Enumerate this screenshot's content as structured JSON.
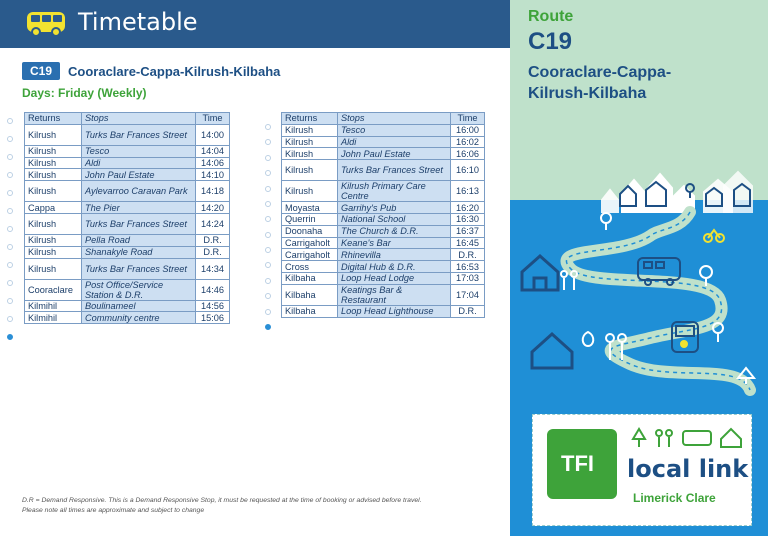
{
  "header": {
    "title": "Timetable"
  },
  "route": {
    "code": "C19",
    "name": "Cooraclare-Cappa-Kilrush-Kilbaha"
  },
  "days": "Days: Friday (Weekly)",
  "columns": {
    "returns": "Returns",
    "stops": "Stops",
    "time": "Time"
  },
  "table1": [
    {
      "place": "Kilrush",
      "stop": "Turks Bar Frances Street",
      "time": "14:00",
      "tall": true
    },
    {
      "place": "Kilrush",
      "stop": "Tesco",
      "time": "14:04"
    },
    {
      "place": "Kilrush",
      "stop": "Aldi",
      "time": "14:06"
    },
    {
      "place": "Kilrush",
      "stop": "John Paul Estate",
      "time": "14:10"
    },
    {
      "place": "Kilrush",
      "stop": "Aylevarroo Caravan Park",
      "time": "14:18",
      "tall": true
    },
    {
      "place": "Cappa",
      "stop": "The Pier",
      "time": "14:20"
    },
    {
      "place": "Kilrush",
      "stop": "Turks Bar Frances Street",
      "time": "14:24",
      "tall": true
    },
    {
      "place": "Kilrush",
      "stop": "Pella Road",
      "time": "D.R."
    },
    {
      "place": "Kilrush",
      "stop": "Shanakyle Road",
      "time": "D.R."
    },
    {
      "place": "Kilrush",
      "stop": "Turks Bar Frances Street",
      "time": "14:34",
      "tall": true
    },
    {
      "place": "Cooraclare",
      "stop": "Post Office/Service Station & D.R.",
      "time": "14:46",
      "tall": true
    },
    {
      "place": "Kilmihil",
      "stop": "Boulinameel",
      "time": "14:56"
    },
    {
      "place": "Kilmihil",
      "stop": "Community centre",
      "time": "15:06"
    }
  ],
  "table2": [
    {
      "place": "Kilrush",
      "stop": "Tesco",
      "time": "16:00"
    },
    {
      "place": "Kilrush",
      "stop": "Aldi",
      "time": "16:02"
    },
    {
      "place": "Kilrush",
      "stop": "John Paul Estate",
      "time": "16:06"
    },
    {
      "place": "Kilrush",
      "stop": "Turks Bar Frances Street",
      "time": "16:10",
      "tall": true
    },
    {
      "place": "Kilrush",
      "stop": "Kilrush Primary Care Centre",
      "time": "16:13",
      "tall": true
    },
    {
      "place": "Moyasta",
      "stop": "Garrihy's Pub",
      "time": "16:20"
    },
    {
      "place": "Querrin",
      "stop": "National School",
      "time": "16:30"
    },
    {
      "place": "Doonaha",
      "stop": "The Church & D.R.",
      "time": "16:37"
    },
    {
      "place": "Carrigaholt",
      "stop": "Keane's Bar",
      "time": "16:45"
    },
    {
      "place": "Carrigaholt",
      "stop": "Rhinevilla",
      "time": "D.R."
    },
    {
      "place": "Cross",
      "stop": "Digital Hub & D.R.",
      "time": "16:53"
    },
    {
      "place": "Kilbaha",
      "stop": "Loop Head Lodge",
      "time": "17:03"
    },
    {
      "place": "Kilbaha",
      "stop": "Keatings Bar & Restaurant",
      "time": "17:04",
      "tall": true
    },
    {
      "place": "Kilbaha",
      "stop": "Loop Head Lighthouse",
      "time": "D.R."
    }
  ],
  "footnotes": [
    "D.R = Demand Responsive. This is a Demand Responsive Stop, it must be requested at the time of booking or advised before travel.",
    "Please note all times are approximate and subject to change"
  ],
  "panel": {
    "route_label": "Route",
    "route_code": "C19",
    "route_desc": "Cooraclare-Cappa-Kilrush-Kilbaha"
  },
  "logo": {
    "tfi": "TFI",
    "brand": "local link",
    "region": "Limerick Clare"
  },
  "colors": {
    "header": "#2a5a8c",
    "green": "#3ea33a",
    "blue": "#1f8fd6",
    "mint": "#bfe1cb",
    "navy": "#1d4f84"
  }
}
